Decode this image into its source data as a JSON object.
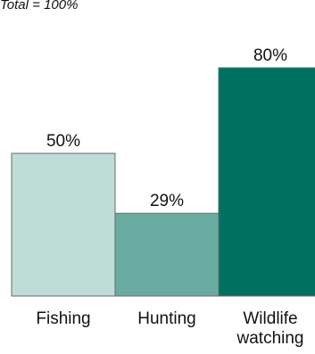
{
  "chart_data": {
    "type": "bar",
    "note": "Total = 100%",
    "categories": [
      "Fishing",
      "Hunting",
      "Wildlife watching"
    ],
    "values": [
      50,
      29,
      80
    ],
    "value_labels": [
      "50%",
      "29%",
      "80%"
    ],
    "colors": [
      "#bfdcd6",
      "#6aaba1",
      "#007060"
    ],
    "bar_stroke": "#6a6a6a",
    "ylim": [
      0,
      100
    ],
    "grid": false,
    "legend": "none"
  }
}
